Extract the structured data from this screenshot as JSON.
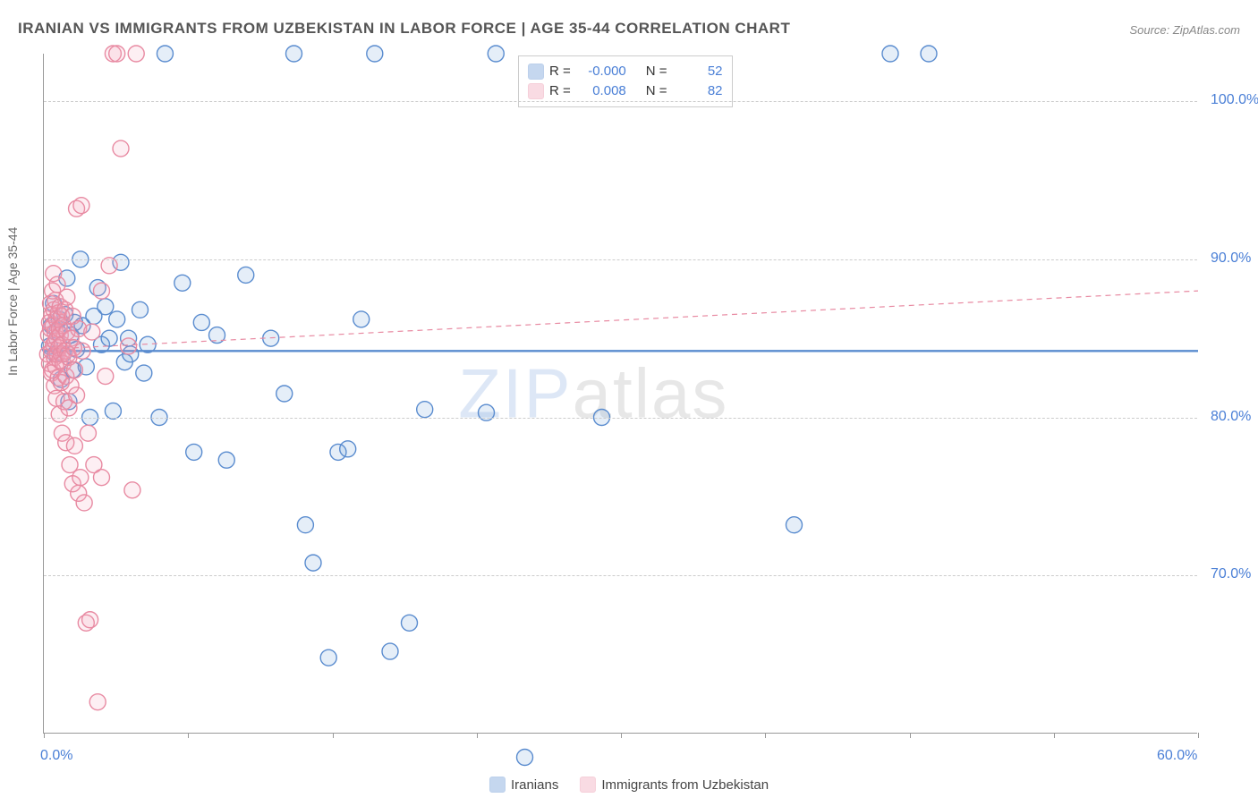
{
  "title": "IRANIAN VS IMMIGRANTS FROM UZBEKISTAN IN LABOR FORCE | AGE 35-44 CORRELATION CHART",
  "source": "Source: ZipAtlas.com",
  "ylabel": "In Labor Force | Age 35-44",
  "watermark_a": "ZIP",
  "watermark_b": "atlas",
  "chart": {
    "type": "scatter",
    "background_color": "#ffffff",
    "grid_color": "#cccccc",
    "axis_color": "#999999",
    "xlim": [
      0,
      60
    ],
    "ylim": [
      60,
      103
    ],
    "x_ticks": [
      0,
      7.5,
      15,
      22.5,
      30,
      37.5,
      45,
      52.5,
      60
    ],
    "x_tick_labels_visible": {
      "0": "0.0%",
      "60": "60.0%"
    },
    "y_grid": [
      70,
      80,
      90,
      100
    ],
    "y_tick_labels": {
      "70": "70.0%",
      "80": "80.0%",
      "90": "90.0%",
      "100": "100.0%"
    },
    "tick_label_color": "#4a7fd6",
    "tick_label_fontsize": 16,
    "ylabel_fontsize": 14,
    "ylabel_color": "#666666",
    "marker_radius": 9,
    "marker_fill_opacity": 0.18,
    "marker_stroke_width": 1.4,
    "series": [
      {
        "name": "Iranians",
        "color": "#6f9ed9",
        "stroke": "#5a8ccf",
        "R": "-0.000",
        "N": "52",
        "trend": {
          "y1": 84.2,
          "y2": 84.2,
          "dash": "0",
          "width": 2.4
        },
        "points": [
          [
            0.3,
            84.5
          ],
          [
            0.4,
            85.8
          ],
          [
            0.5,
            87.2
          ],
          [
            0.6,
            84.0
          ],
          [
            0.7,
            85.5
          ],
          [
            0.8,
            86.2
          ],
          [
            0.9,
            82.4
          ],
          [
            1.0,
            84.0
          ],
          [
            1.1,
            86.5
          ],
          [
            1.2,
            88.8
          ],
          [
            1.3,
            81.0
          ],
          [
            1.4,
            85.2
          ],
          [
            1.5,
            83.0
          ],
          [
            1.6,
            86.0
          ],
          [
            1.7,
            84.3
          ],
          [
            1.9,
            90.0
          ],
          [
            2.0,
            85.8
          ],
          [
            2.2,
            83.2
          ],
          [
            2.4,
            80.0
          ],
          [
            2.6,
            86.4
          ],
          [
            2.8,
            88.2
          ],
          [
            3.0,
            84.6
          ],
          [
            3.2,
            87.0
          ],
          [
            3.4,
            85.0
          ],
          [
            3.6,
            80.4
          ],
          [
            3.8,
            86.2
          ],
          [
            4.0,
            89.8
          ],
          [
            4.2,
            83.5
          ],
          [
            4.4,
            85.0
          ],
          [
            4.5,
            84.0
          ],
          [
            5.0,
            86.8
          ],
          [
            5.2,
            82.8
          ],
          [
            5.4,
            84.6
          ],
          [
            6.0,
            80.0
          ],
          [
            6.3,
            103.0
          ],
          [
            7.2,
            88.5
          ],
          [
            7.8,
            77.8
          ],
          [
            8.2,
            86.0
          ],
          [
            9.0,
            85.2
          ],
          [
            9.5,
            77.3
          ],
          [
            10.5,
            89.0
          ],
          [
            11.8,
            85.0
          ],
          [
            12.5,
            81.5
          ],
          [
            13.0,
            103.0
          ],
          [
            13.6,
            73.2
          ],
          [
            14.0,
            70.8
          ],
          [
            14.8,
            64.8
          ],
          [
            15.3,
            77.8
          ],
          [
            15.8,
            78.0
          ],
          [
            16.5,
            86.2
          ],
          [
            17.2,
            103.0
          ],
          [
            18.0,
            65.2
          ],
          [
            19.0,
            67.0
          ],
          [
            19.8,
            80.5
          ],
          [
            23.0,
            80.3
          ],
          [
            23.5,
            103.0
          ],
          [
            25.0,
            58.5
          ],
          [
            29.0,
            80.0
          ],
          [
            39.0,
            73.2
          ],
          [
            44.0,
            103.0
          ],
          [
            46.0,
            103.0
          ]
        ]
      },
      {
        "name": "Immigrants from Uzbekistan",
        "color": "#f2a6ba",
        "stroke": "#e88aa2",
        "R": "0.008",
        "N": "82",
        "trend": {
          "y1": 84.3,
          "y2": 88.0,
          "dash": "6 5",
          "width": 1.2
        },
        "points": [
          [
            0.2,
            84.0
          ],
          [
            0.25,
            85.2
          ],
          [
            0.3,
            86.0
          ],
          [
            0.3,
            83.4
          ],
          [
            0.35,
            87.2
          ],
          [
            0.35,
            85.6
          ],
          [
            0.4,
            84.2
          ],
          [
            0.4,
            82.8
          ],
          [
            0.42,
            86.5
          ],
          [
            0.45,
            88.0
          ],
          [
            0.45,
            83.0
          ],
          [
            0.48,
            85.8
          ],
          [
            0.5,
            84.6
          ],
          [
            0.5,
            89.1
          ],
          [
            0.52,
            86.8
          ],
          [
            0.55,
            83.8
          ],
          [
            0.55,
            82.0
          ],
          [
            0.58,
            85.4
          ],
          [
            0.6,
            87.4
          ],
          [
            0.6,
            84.8
          ],
          [
            0.62,
            83.2
          ],
          [
            0.65,
            86.2
          ],
          [
            0.65,
            81.2
          ],
          [
            0.68,
            85.0
          ],
          [
            0.7,
            84.0
          ],
          [
            0.7,
            88.4
          ],
          [
            0.75,
            82.5
          ],
          [
            0.75,
            86.6
          ],
          [
            0.78,
            84.4
          ],
          [
            0.8,
            85.6
          ],
          [
            0.8,
            80.2
          ],
          [
            0.82,
            83.6
          ],
          [
            0.85,
            87.0
          ],
          [
            0.85,
            85.2
          ],
          [
            0.9,
            84.0
          ],
          [
            0.9,
            82.2
          ],
          [
            0.92,
            86.4
          ],
          [
            0.95,
            79.0
          ],
          [
            0.95,
            84.6
          ],
          [
            1.0,
            85.8
          ],
          [
            1.0,
            83.4
          ],
          [
            1.05,
            81.0
          ],
          [
            1.1,
            86.8
          ],
          [
            1.1,
            84.2
          ],
          [
            1.15,
            78.4
          ],
          [
            1.15,
            82.6
          ],
          [
            1.2,
            85.4
          ],
          [
            1.2,
            87.6
          ],
          [
            1.25,
            84.0
          ],
          [
            1.3,
            80.6
          ],
          [
            1.3,
            83.8
          ],
          [
            1.35,
            77.0
          ],
          [
            1.4,
            85.0
          ],
          [
            1.4,
            82.0
          ],
          [
            1.5,
            86.4
          ],
          [
            1.5,
            75.8
          ],
          [
            1.55,
            84.4
          ],
          [
            1.6,
            78.2
          ],
          [
            1.6,
            83.0
          ],
          [
            1.7,
            93.2
          ],
          [
            1.7,
            81.4
          ],
          [
            1.8,
            85.6
          ],
          [
            1.8,
            75.2
          ],
          [
            1.9,
            76.2
          ],
          [
            1.95,
            93.4
          ],
          [
            2.0,
            84.2
          ],
          [
            2.1,
            74.6
          ],
          [
            2.2,
            67.0
          ],
          [
            2.3,
            79.0
          ],
          [
            2.4,
            67.2
          ],
          [
            2.5,
            85.4
          ],
          [
            2.6,
            77.0
          ],
          [
            2.8,
            62.0
          ],
          [
            3.0,
            88.0
          ],
          [
            3.0,
            76.2
          ],
          [
            3.2,
            82.6
          ],
          [
            3.4,
            89.6
          ],
          [
            3.6,
            103.0
          ],
          [
            4.0,
            97.0
          ],
          [
            4.4,
            84.5
          ],
          [
            4.6,
            75.4
          ],
          [
            4.8,
            103.0
          ],
          [
            3.8,
            103.0
          ]
        ]
      }
    ]
  },
  "legend_top": {
    "r_label": "R =",
    "n_label": "N ="
  },
  "legend_bottom": {
    "items": [
      "Iranians",
      "Immigrants from Uzbekistan"
    ]
  }
}
